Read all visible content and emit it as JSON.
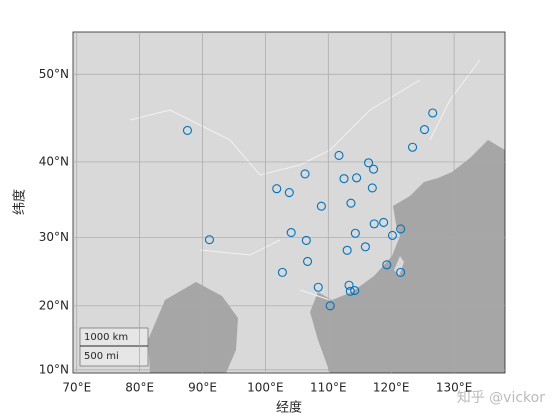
{
  "chart_data": {
    "type": "scatter",
    "projection": "mercator",
    "grid": true,
    "x_label": "经度",
    "y_label": "纬度",
    "color": "#0072bd",
    "x": [
      87.6,
      91.1,
      102.7,
      101.8,
      103.8,
      106.3,
      104.1,
      106.5,
      106.7,
      108.4,
      110.3,
      108.9,
      111.7,
      112.5,
      114.5,
      113.6,
      116.4,
      117.2,
      117.0,
      114.3,
      113.0,
      115.9,
      117.3,
      118.8,
      120.2,
      121.5,
      119.3,
      121.5,
      113.3,
      114.2,
      113.5,
      123.4,
      125.3,
      126.6
    ],
    "y": [
      43.8,
      29.7,
      25.0,
      36.6,
      36.1,
      38.5,
      30.7,
      29.6,
      26.6,
      22.8,
      20.0,
      34.3,
      40.8,
      37.9,
      38.0,
      34.7,
      39.9,
      39.1,
      36.7,
      30.6,
      28.2,
      28.7,
      31.9,
      32.1,
      30.3,
      31.2,
      26.1,
      25.0,
      23.1,
      22.3,
      22.2,
      41.8,
      43.9,
      45.8
    ],
    "xlim": [
      69.4,
      138.1
    ],
    "ylim": [
      9.5,
      54.2
    ],
    "xticks": [
      {
        "value": 70,
        "label": "70°E"
      },
      {
        "value": 80,
        "label": "80°E"
      },
      {
        "value": 90,
        "label": "90°E"
      },
      {
        "value": 100,
        "label": "100°E"
      },
      {
        "value": 110,
        "label": "110°E"
      },
      {
        "value": 120,
        "label": "120°E"
      },
      {
        "value": 130,
        "label": "130°E"
      }
    ],
    "yticks": [
      {
        "value": 10,
        "label": "10°N"
      },
      {
        "value": 20,
        "label": "20°N"
      },
      {
        "value": 30,
        "label": "30°N"
      },
      {
        "value": 40,
        "label": "40°N"
      },
      {
        "value": 50,
        "label": "50°N"
      }
    ],
    "scale_bar": [
      "1000 km",
      "500 mi"
    ],
    "watermark": "知乎 @vickor"
  }
}
